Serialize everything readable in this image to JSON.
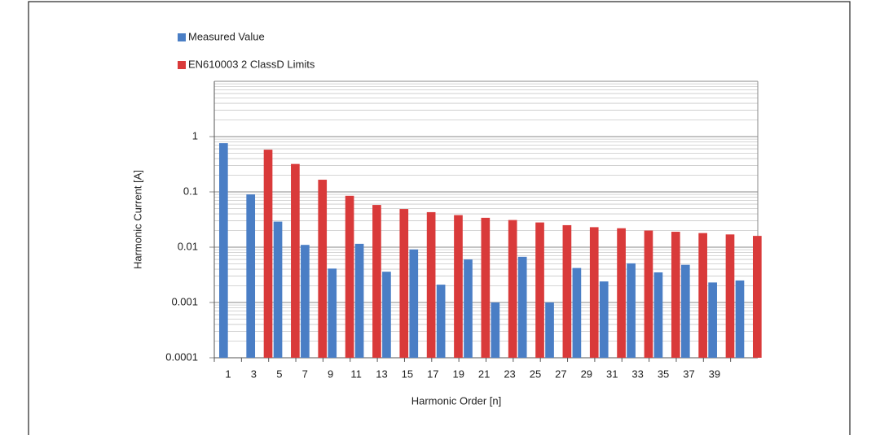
{
  "chart_data": {
    "type": "bar",
    "x_label": "Harmonic Order [n]",
    "y_label": "Harmonic Current [A]",
    "categories": [
      "1",
      "3",
      "5",
      "7",
      "9",
      "11",
      "13",
      "15",
      "17",
      "19",
      "21",
      "23",
      "25",
      "27",
      "29",
      "31",
      "33",
      "35",
      "37",
      "39"
    ],
    "series": [
      {
        "name": "Measured Value",
        "color": "#4a7ec5",
        "values": [
          0.76,
          0.09,
          0.029,
          0.011,
          0.0041,
          0.0115,
          0.0036,
          0.0091,
          0.0021,
          0.006,
          0.001,
          0.0067,
          0.001,
          0.0042,
          0.0024,
          0.0051,
          0.0035,
          0.0048,
          0.0023,
          0.0025
        ]
      },
      {
        "name": "EN610003 2 ClassD Limits",
        "color": "#d93a3a",
        "values": [
          null,
          0.58,
          0.32,
          0.166,
          0.085,
          0.058,
          0.049,
          0.043,
          0.038,
          0.034,
          0.031,
          0.028,
          0.025,
          0.023,
          0.022,
          0.02,
          0.019,
          0.018,
          0.017,
          0.016
        ]
      }
    ],
    "log_scale": true,
    "ylim": [
      0.0001,
      10
    ],
    "yticks": [
      0.0001,
      0.001,
      0.01,
      0.1,
      1
    ],
    "grid": true
  }
}
